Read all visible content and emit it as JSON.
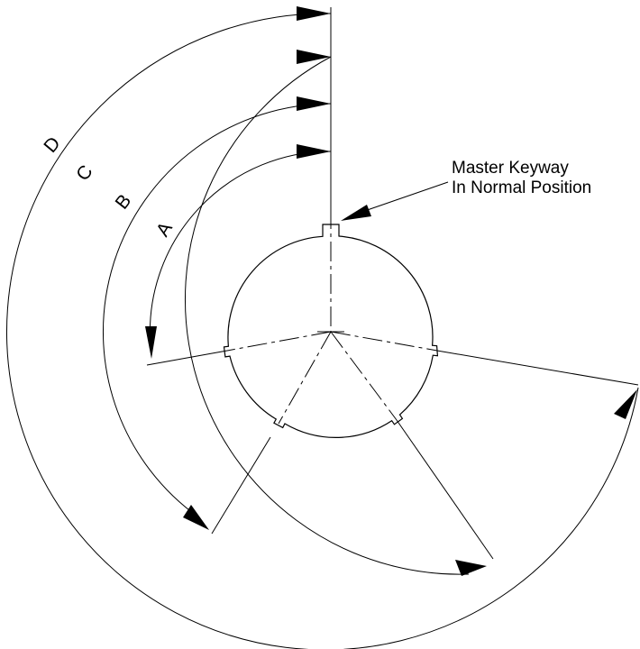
{
  "callout": {
    "line1": "Master Keyway",
    "line2": "In Normal Position"
  },
  "arcs": [
    {
      "id": "A",
      "label": "A"
    },
    {
      "id": "B",
      "label": "B"
    },
    {
      "id": "C",
      "label": "C"
    },
    {
      "id": "D",
      "label": "D"
    }
  ]
}
